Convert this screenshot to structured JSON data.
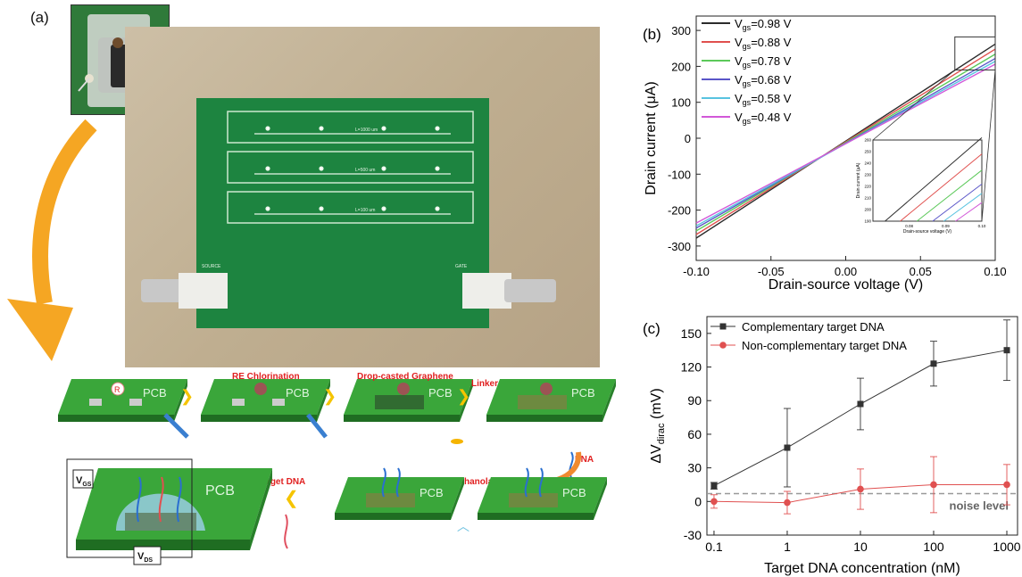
{
  "figure": {
    "panel_labels": {
      "a": "(a)",
      "b": "(b)",
      "c": "(c)"
    },
    "schematic": {
      "pcb_label": "PCB",
      "electrode_letter": "R",
      "steps": [
        "RE Chlorination",
        "Drop-casted Graphene",
        "Linker",
        "PNA",
        "Ethanolamine",
        "Target DNA"
      ],
      "vgs_label": "V",
      "vgs_sub": "GS",
      "vds_label": "V",
      "vds_sub": "DS"
    },
    "board": {
      "channel_labels": [
        "L=1000 um",
        "L=500 um",
        "L=100 um"
      ],
      "connector_labels": [
        "SOURCE",
        "GATE"
      ]
    }
  },
  "chart_data": [
    {
      "type": "line",
      "panel": "(b)",
      "xlabel": "Drain-source voltage (V)",
      "ylabel": "Drain current (μA)",
      "xlim": [
        -0.1,
        0.1
      ],
      "ylim": [
        -340,
        340
      ],
      "xticks": [
        "-0.10",
        "-0.05",
        "0.00",
        "0.05",
        "0.10"
      ],
      "yticks": [
        "-300",
        "-200",
        "-100",
        "0",
        "100",
        "200",
        "300"
      ],
      "legend_position": "top-left",
      "series": [
        {
          "name": "V_gs=0.98 V",
          "legend_main": "V",
          "legend_sub": "gs",
          "legend_rest": "=0.98 V",
          "color": "#2b2b2b",
          "x": [
            -0.1,
            0.1
          ],
          "y": [
            -278,
            262
          ]
        },
        {
          "name": "V_gs=0.88 V",
          "legend_main": "V",
          "legend_sub": "gs",
          "legend_rest": "=0.88 V",
          "color": "#e0504e",
          "x": [
            -0.1,
            0.1
          ],
          "y": [
            -268,
            248
          ]
        },
        {
          "name": "V_gs=0.78 V",
          "legend_main": "V",
          "legend_sub": "gs",
          "legend_rest": "=0.78 V",
          "color": "#5cc95a",
          "x": [
            -0.1,
            0.1
          ],
          "y": [
            -258,
            234
          ]
        },
        {
          "name": "V_gs=0.68 V",
          "legend_main": "V",
          "legend_sub": "gs",
          "legend_rest": "=0.68 V",
          "color": "#5a56c8",
          "x": [
            -0.1,
            0.1
          ],
          "y": [
            -250,
            222
          ]
        },
        {
          "name": "V_gs=0.58 V",
          "legend_main": "V",
          "legend_sub": "gs",
          "legend_rest": "=0.58 V",
          "color": "#58c3e0",
          "x": [
            -0.1,
            0.1
          ],
          "y": [
            -244,
            214
          ]
        },
        {
          "name": "V_gs=0.48 V",
          "legend_main": "V",
          "legend_sub": "gs",
          "legend_rest": "=0.48 V",
          "color": "#d258d8",
          "x": [
            -0.1,
            0.1
          ],
          "y": [
            -236,
            206
          ]
        }
      ],
      "inset": {
        "xlabel": "Drain-source voltage (V)",
        "ylabel": "Drain current (μA)",
        "xlim": [
          0.07,
          0.1
        ],
        "ylim": [
          190,
          260
        ],
        "xticks": [
          "0.08",
          "0.09",
          "0.10"
        ],
        "yticks": [
          "190",
          "200",
          "210",
          "220",
          "230",
          "240",
          "250",
          "260"
        ]
      }
    },
    {
      "type": "line",
      "panel": "(c)",
      "xlabel": "Target DNA concentration (nM)",
      "ylabel_main": "ΔV",
      "ylabel_sub": "dirac",
      "ylabel_unit": " (mV)",
      "xscale": "log",
      "xlim": [
        0.08,
        1400
      ],
      "ylim": [
        -30,
        165
      ],
      "xticks": [
        "0.1",
        "1",
        "10",
        "100",
        "1000"
      ],
      "yticks": [
        "-30",
        "0",
        "30",
        "60",
        "90",
        "120",
        "150"
      ],
      "legend_position": "top-left",
      "series": [
        {
          "name": "Complementary target DNA",
          "color": "#333333",
          "marker": "square",
          "x": [
            0.1,
            1,
            10,
            100,
            1000
          ],
          "y": [
            14,
            48,
            87,
            123,
            135
          ],
          "err": [
            3,
            35,
            23,
            20,
            27
          ]
        },
        {
          "name": "Non-complementary target DNA",
          "color": "#e05050",
          "marker": "circle",
          "x": [
            0.1,
            1,
            10,
            100,
            1000
          ],
          "y": [
            0,
            -1,
            11,
            15,
            15
          ],
          "err": [
            6,
            10,
            18,
            25,
            18
          ]
        }
      ],
      "reference_line": {
        "y": 7,
        "label": "noise level"
      }
    }
  ]
}
